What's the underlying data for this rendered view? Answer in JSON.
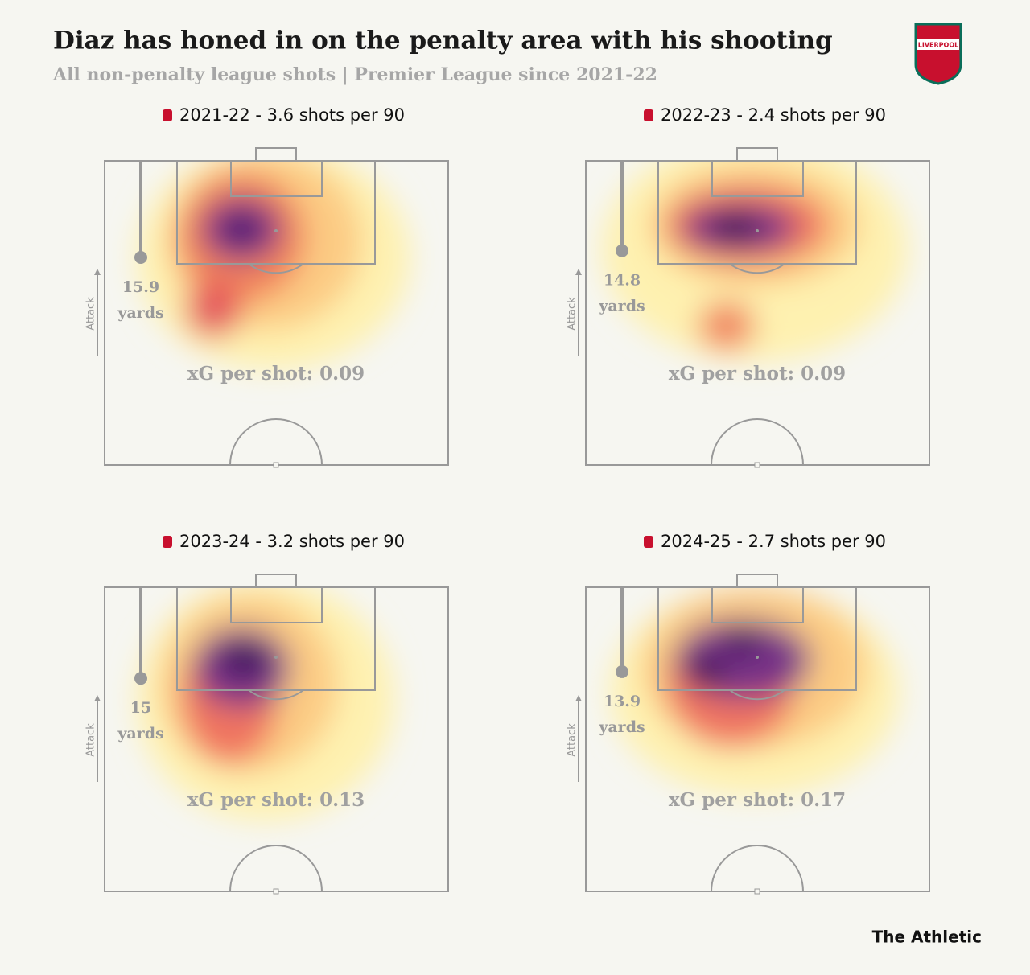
{
  "header": {
    "title": "Diaz has honed in on the penalty area with his shooting",
    "subtitle": "All non-penalty league shots | Premier League since 2021-22",
    "logo_text": "LIVERPOOL"
  },
  "panels": [
    {
      "title": "2021-22 - 3.6 shots per 90",
      "distance": 15.9,
      "distance_unit": "yards",
      "attack_label": "Attack",
      "xg_label": "xG per shot: 0.09"
    },
    {
      "title": "2022-23 - 2.4 shots per 90",
      "distance": 14.8,
      "distance_unit": "yards",
      "attack_label": "Attack",
      "xg_label": "xG per shot: 0.09"
    },
    {
      "title": "2023-24 - 3.2 shots per 90",
      "distance": 15,
      "distance_unit": "yards",
      "attack_label": "Attack",
      "xg_label": "xG per shot: 0.13"
    },
    {
      "title": "2024-25 - 2.7 shots per 90",
      "distance": 13.9,
      "distance_unit": "yards",
      "attack_label": "Attack",
      "xg_label": "xG per shot: 0.17"
    }
  ],
  "footer": {
    "source": "The Athletic"
  }
}
